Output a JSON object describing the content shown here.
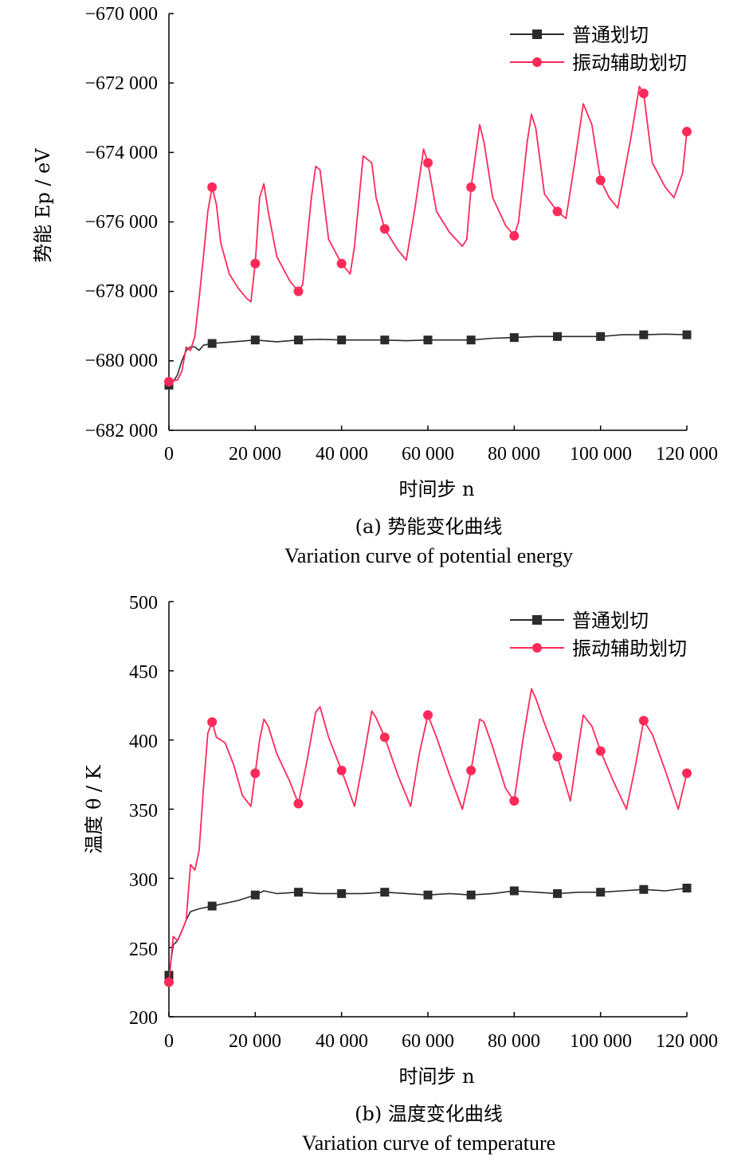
{
  "colors": {
    "normal": "#2b2b2b",
    "vibration": "#ff2a5a",
    "axis": "#000000"
  },
  "panel_a": {
    "caption_cn": "(a) 势能变化曲线",
    "caption_en": "Variation curve of potential energy",
    "ylabel": "势能 Ep / eV",
    "xlabel": "时间步 n",
    "legend": [
      "普通划切",
      "振动辅助划切"
    ],
    "yticks": [
      "−670 000",
      "−672 000",
      "−674 000",
      "−676 000",
      "−678 000",
      "−680 000",
      "−682 000"
    ],
    "xticks": [
      "0",
      "20 000",
      "40 000",
      "60 000",
      "80 000",
      "100 000",
      "120 000"
    ]
  },
  "panel_b": {
    "caption_cn": "(b) 温度变化曲线",
    "caption_en": "Variation curve of temperature",
    "ylabel": "温度 θ / K",
    "xlabel": "时间步 n",
    "legend": [
      "普通划切",
      "振动辅助划切"
    ],
    "yticks": [
      "500",
      "450",
      "400",
      "350",
      "300",
      "250",
      "200"
    ],
    "xticks": [
      "0",
      "20 000",
      "40 000",
      "60 000",
      "80 000",
      "100 000",
      "120 000"
    ]
  },
  "chart_data": [
    {
      "type": "line",
      "title": "(a) 势能变化曲线 Variation curve of potential energy",
      "xlabel": "时间步 n",
      "ylabel": "势能 Ep / eV",
      "xlim": [
        0,
        120000
      ],
      "ylim": [
        -682000,
        -670000
      ],
      "grid": false,
      "legend": "top-right",
      "series": [
        {
          "name": "普通划切",
          "marker": "square",
          "x": [
            0,
            1000,
            2000,
            3000,
            4000,
            5000,
            6000,
            7000,
            8000,
            10000,
            15000,
            20000,
            25000,
            30000,
            35000,
            40000,
            45000,
            50000,
            55000,
            60000,
            65000,
            70000,
            75000,
            80000,
            85000,
            90000,
            95000,
            100000,
            105000,
            110000,
            115000,
            120000
          ],
          "y": [
            -680700,
            -680600,
            -680400,
            -680000,
            -679700,
            -679600,
            -679600,
            -679700,
            -679550,
            -679500,
            -679450,
            -679400,
            -679450,
            -679400,
            -679380,
            -679400,
            -679400,
            -679400,
            -679420,
            -679400,
            -679400,
            -679400,
            -679350,
            -679330,
            -679300,
            -679300,
            -679300,
            -679300,
            -679250,
            -679250,
            -679230,
            -679250
          ]
        },
        {
          "name": "振动辅助划切",
          "marker": "circle",
          "x": [
            0,
            2000,
            3000,
            4000,
            5000,
            6000,
            7000,
            8000,
            9000,
            10000,
            11000,
            12000,
            14000,
            16000,
            18000,
            19000,
            20000,
            21000,
            22000,
            23000,
            25000,
            28000,
            30000,
            31000,
            33000,
            34000,
            35000,
            37000,
            40000,
            42000,
            43000,
            45000,
            47000,
            48000,
            50000,
            53000,
            55000,
            57000,
            59000,
            60000,
            62000,
            65000,
            68000,
            69000,
            70000,
            72000,
            73000,
            75000,
            78000,
            80000,
            81000,
            83000,
            84000,
            85000,
            87000,
            90000,
            92000,
            94000,
            96000,
            98000,
            100000,
            102000,
            104000,
            107000,
            109000,
            110000,
            112000,
            115000,
            117000,
            119000,
            120000
          ],
          "y": [
            -680600,
            -680550,
            -680300,
            -679600,
            -679700,
            -679300,
            -678200,
            -677000,
            -675700,
            -675000,
            -675500,
            -676600,
            -677500,
            -677900,
            -678200,
            -678300,
            -677200,
            -675300,
            -674900,
            -675700,
            -677000,
            -677700,
            -678000,
            -677800,
            -675300,
            -674400,
            -674500,
            -676500,
            -677200,
            -677500,
            -676700,
            -674100,
            -674300,
            -675300,
            -676200,
            -676800,
            -677100,
            -675600,
            -673900,
            -674300,
            -675700,
            -676300,
            -676700,
            -676500,
            -675000,
            -673200,
            -673700,
            -675300,
            -676100,
            -676400,
            -676000,
            -673700,
            -672900,
            -673300,
            -675200,
            -675700,
            -675900,
            -674300,
            -672600,
            -673200,
            -674800,
            -675300,
            -675600,
            -673600,
            -672100,
            -672300,
            -674300,
            -675000,
            -675300,
            -674600,
            -673400
          ]
        }
      ]
    },
    {
      "type": "line",
      "title": "(b) 温度变化曲线 Variation curve of temperature",
      "xlabel": "时间步 n",
      "ylabel": "温度 θ / K",
      "xlim": [
        0,
        120000
      ],
      "ylim": [
        200,
        500
      ],
      "grid": false,
      "legend": "top-right",
      "series": [
        {
          "name": "普通划切",
          "marker": "square",
          "x": [
            0,
            1000,
            2000,
            3000,
            4000,
            5000,
            7000,
            10000,
            13000,
            16000,
            20000,
            22000,
            25000,
            30000,
            35000,
            40000,
            45000,
            50000,
            55000,
            60000,
            65000,
            70000,
            75000,
            80000,
            85000,
            90000,
            95000,
            100000,
            105000,
            110000,
            115000,
            120000
          ],
          "y": [
            230,
            252,
            255,
            262,
            270,
            276,
            278,
            280,
            282,
            284,
            288,
            291,
            289,
            290,
            289,
            289,
            289,
            290,
            289,
            288,
            289,
            288,
            289,
            291,
            290,
            289,
            290,
            290,
            291,
            292,
            291,
            293
          ]
        },
        {
          "name": "振动辅助划切",
          "marker": "circle",
          "x": [
            0,
            1000,
            2000,
            3000,
            4000,
            5000,
            6000,
            7000,
            8000,
            9000,
            10000,
            11000,
            13000,
            15000,
            17000,
            19000,
            20000,
            21000,
            22000,
            23000,
            25000,
            28000,
            30000,
            32000,
            34000,
            35000,
            37000,
            40000,
            43000,
            45000,
            47000,
            48000,
            50000,
            53000,
            56000,
            58000,
            60000,
            62000,
            65000,
            68000,
            70000,
            72000,
            73000,
            75000,
            78000,
            80000,
            82000,
            84000,
            85000,
            87000,
            90000,
            93000,
            95000,
            96000,
            98000,
            100000,
            103000,
            106000,
            108000,
            110000,
            112000,
            115000,
            118000,
            120000
          ],
          "y": [
            225,
            258,
            255,
            262,
            270,
            310,
            306,
            320,
            365,
            405,
            413,
            402,
            398,
            382,
            360,
            352,
            376,
            400,
            415,
            410,
            390,
            370,
            354,
            385,
            420,
            424,
            402,
            378,
            352,
            385,
            421,
            416,
            402,
            375,
            352,
            390,
            418,
            402,
            375,
            350,
            378,
            415,
            413,
            395,
            365,
            356,
            400,
            437,
            430,
            412,
            388,
            356,
            398,
            418,
            410,
            392,
            370,
            350,
            380,
            414,
            404,
            378,
            350,
            376
          ]
        }
      ]
    }
  ]
}
